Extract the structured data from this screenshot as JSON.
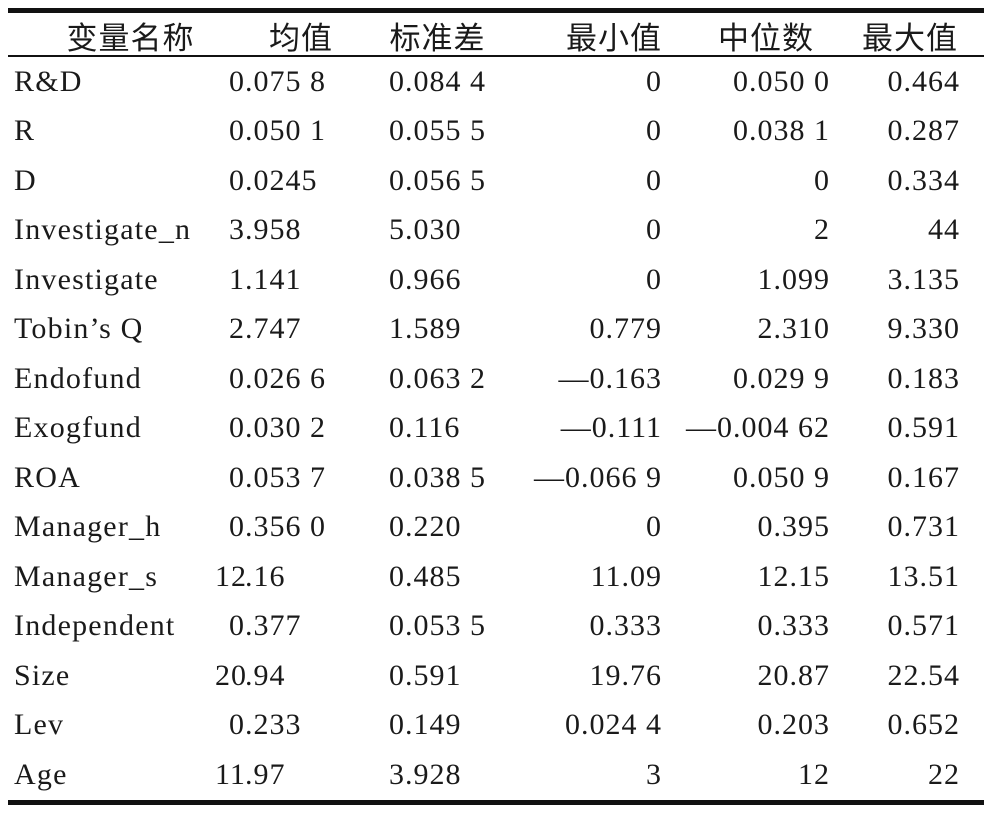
{
  "table": {
    "background": "#ffffff",
    "text_color": "#1a1a1a",
    "rule_color": "#111111",
    "headers": {
      "name": "变量名称",
      "mean": "均值",
      "sd": "标准差",
      "min": "最小值",
      "median": "中位数",
      "max": "最大值"
    },
    "rows": [
      {
        "name": "R&D",
        "mean": "0.075 8",
        "sd": "0.084 4",
        "min": "0",
        "median": "0.050 0",
        "max": "0.464"
      },
      {
        "name": "R",
        "mean": "0.050 1",
        "sd": "0.055 5",
        "min": "0",
        "median": "0.038 1",
        "max": "0.287"
      },
      {
        "name": "D",
        "mean": "0.0245",
        "sd": "0.056 5",
        "min": "0",
        "median": "0",
        "max": "0.334"
      },
      {
        "name": "Investigate_n",
        "mean": "3.958",
        "sd": "5.030",
        "min": "0",
        "median": "2",
        "max": "44"
      },
      {
        "name": "Investigate",
        "mean": "1.141",
        "sd": "0.966",
        "min": "0",
        "median": "1.099",
        "max": "3.135"
      },
      {
        "name": "Tobin’s Q",
        "mean": "2.747",
        "sd": "1.589",
        "min": "0.779",
        "median": "2.310",
        "max": "9.330"
      },
      {
        "name": "Endofund",
        "mean": "0.026 6",
        "sd": "0.063 2",
        "min": "—0.163",
        "median": "0.029 9",
        "max": "0.183"
      },
      {
        "name": "Exogfund",
        "mean": "0.030 2",
        "sd": "0.116",
        "min": "—0.111",
        "median": "—0.004 62",
        "max": "0.591"
      },
      {
        "name": "ROA",
        "mean": "0.053 7",
        "sd": "0.038 5",
        "min": "—0.066 9",
        "median": "0.050 9",
        "max": "0.167"
      },
      {
        "name": "Manager_h",
        "mean": "0.356 0",
        "sd": "0.220",
        "min": "0",
        "median": "0.395",
        "max": "0.731"
      },
      {
        "name": "Manager_s",
        "mean": "12.16",
        "sd": "0.485",
        "min": "11.09",
        "median": "12.15",
        "max": "13.51"
      },
      {
        "name": "Independent",
        "mean": "0.377",
        "sd": "0.053 5",
        "min": "0.333",
        "median": "0.333",
        "max": "0.571"
      },
      {
        "name": "Size",
        "mean": "20.94",
        "sd": "0.591",
        "min": "19.76",
        "median": "20.87",
        "max": "22.54"
      },
      {
        "name": "Lev",
        "mean": "0.233",
        "sd": "0.149",
        "min": "0.024 4",
        "median": "0.203",
        "max": "0.652"
      },
      {
        "name": "Age",
        "mean": "11.97",
        "sd": "3.928",
        "min": "3",
        "median": "12",
        "max": "22"
      }
    ]
  }
}
